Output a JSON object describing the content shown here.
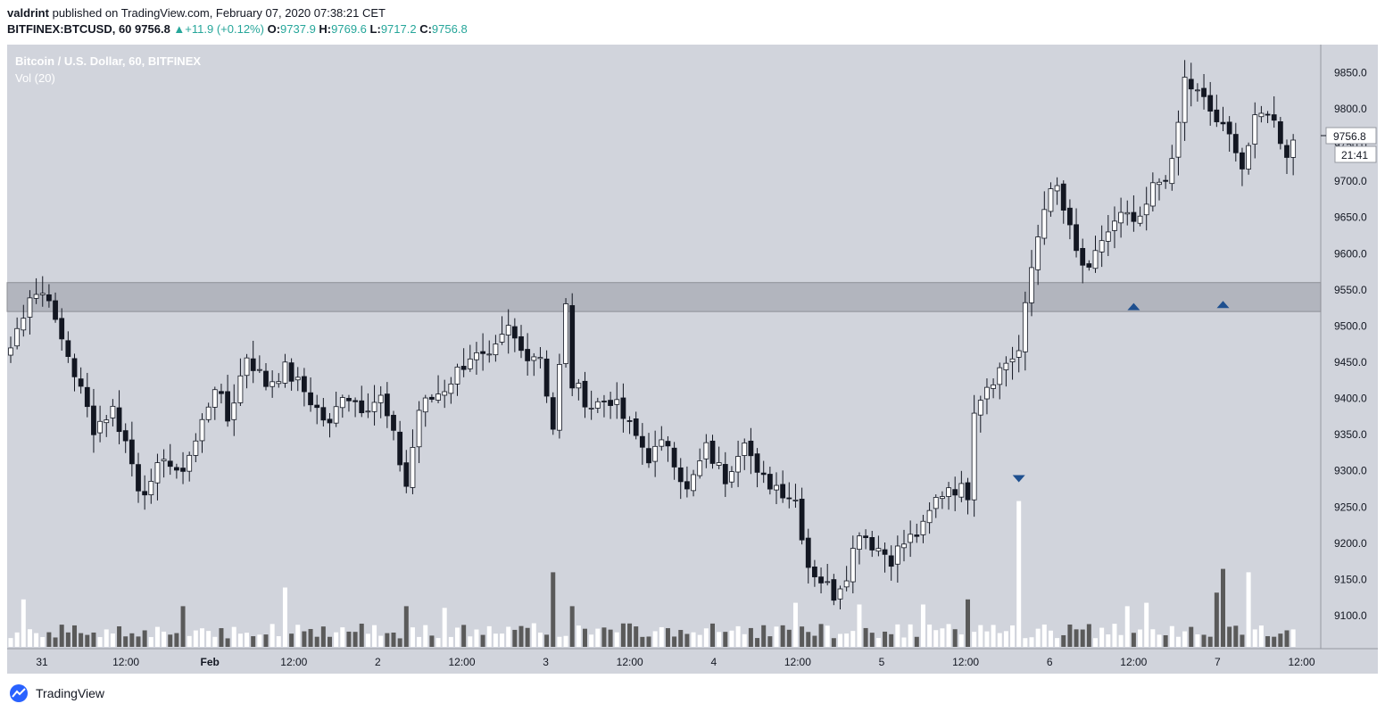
{
  "header": {
    "line1_user": "valdrint",
    "line1_rest": "published on TradingView.com, February 07, 2020 07:38:21 CET",
    "symbol": "BITFINEX:BTCUSD, 60",
    "last": "9756.8",
    "change": "+11.9 (+0.12%)",
    "o_label": "O:",
    "o": "9737.9",
    "h_label": "H:",
    "h": "9769.6",
    "l_label": "L:",
    "l": "9717.2",
    "c_label": "C:",
    "c": "9756.8"
  },
  "chart_data": {
    "type": "candlestick",
    "title": "Bitcoin / U.S. Dollar, 60, BITFINEX",
    "subtitle": "Vol (20)",
    "y_ticks": [
      9100,
      9150,
      9200,
      9250,
      9300,
      9350,
      9400,
      9450,
      9500,
      9550,
      9600,
      9650,
      9700,
      9750,
      9800,
      9850
    ],
    "y_tick_labels": [
      "9100.0",
      "9150.0",
      "9200.0",
      "9250.0",
      "9300.0",
      "9350.0",
      "9400.0",
      "9450.0",
      "9500.0",
      "9550.0",
      "9600.0",
      "9650.0",
      "9700.0",
      "9750.0",
      "9800.0",
      "9850.0"
    ],
    "x_tick_labels": [
      "31",
      "12:00",
      "Feb",
      "12:00",
      "2",
      "12:00",
      "3",
      "12:00",
      "4",
      "12:00",
      "5",
      "12:00",
      "6",
      "12:00",
      "7",
      "12:00"
    ],
    "x_tick_bold": [
      false,
      false,
      true,
      false,
      false,
      false,
      false,
      false,
      false,
      false,
      false,
      false,
      false,
      false,
      false,
      false
    ],
    "current_price_label": "9756.8",
    "countdown_label": "21:41",
    "support_zone": [
      9520,
      9560
    ],
    "markers": [
      {
        "type": "down",
        "bar": 158,
        "price": 9288
      },
      {
        "type": "up",
        "bar": 176,
        "price": 9528
      },
      {
        "type": "up",
        "bar": 190,
        "price": 9531
      }
    ],
    "colors": {
      "up_body": "#ffffff",
      "down_body": "#131722",
      "wick": "#131722",
      "vol_up": "#ffffff",
      "vol_down": "#5a5a5a",
      "zone": "#b2b5be",
      "marker": "#1e4f8f",
      "bg": "#d1d4dc"
    },
    "waypoints": [
      [
        0,
        9470
      ],
      [
        3,
        9545
      ],
      [
        6,
        9545
      ],
      [
        7,
        9500
      ],
      [
        9,
        9460
      ],
      [
        13,
        9360
      ],
      [
        16,
        9385
      ],
      [
        18,
        9340
      ],
      [
        20,
        9280
      ],
      [
        22,
        9275
      ],
      [
        24,
        9325
      ],
      [
        26,
        9290
      ],
      [
        29,
        9340
      ],
      [
        32,
        9420
      ],
      [
        34,
        9370
      ],
      [
        37,
        9460
      ],
      [
        40,
        9420
      ],
      [
        43,
        9440
      ],
      [
        46,
        9410
      ],
      [
        50,
        9360
      ],
      [
        52,
        9410
      ],
      [
        55,
        9390
      ],
      [
        58,
        9400
      ],
      [
        60,
        9345
      ],
      [
        62,
        9280
      ],
      [
        64,
        9385
      ],
      [
        68,
        9415
      ],
      [
        72,
        9460
      ],
      [
        75,
        9450
      ],
      [
        78,
        9495
      ],
      [
        80,
        9465
      ],
      [
        83,
        9460
      ],
      [
        85,
        9360
      ],
      [
        87,
        9525
      ],
      [
        88,
        9420
      ],
      [
        91,
        9390
      ],
      [
        94,
        9400
      ],
      [
        97,
        9360
      ],
      [
        100,
        9320
      ],
      [
        103,
        9340
      ],
      [
        106,
        9270
      ],
      [
        109,
        9330
      ],
      [
        112,
        9290
      ],
      [
        115,
        9350
      ],
      [
        117,
        9290
      ],
      [
        120,
        9280
      ],
      [
        123,
        9260
      ],
      [
        125,
        9170
      ],
      [
        127,
        9150
      ],
      [
        129,
        9130
      ],
      [
        131,
        9160
      ],
      [
        133,
        9220
      ],
      [
        135,
        9200
      ],
      [
        138,
        9180
      ],
      [
        140,
        9200
      ],
      [
        143,
        9220
      ],
      [
        145,
        9260
      ],
      [
        147,
        9280
      ],
      [
        150,
        9270
      ],
      [
        151,
        9390
      ],
      [
        153,
        9420
      ],
      [
        156,
        9450
      ],
      [
        158,
        9465
      ],
      [
        160,
        9580
      ],
      [
        162,
        9670
      ],
      [
        164,
        9690
      ],
      [
        167,
        9600
      ],
      [
        169,
        9570
      ],
      [
        171,
        9620
      ],
      [
        174,
        9650
      ],
      [
        177,
        9640
      ],
      [
        179,
        9690
      ],
      [
        182,
        9720
      ],
      [
        184,
        9840
      ],
      [
        187,
        9810
      ],
      [
        190,
        9770
      ],
      [
        192,
        9750
      ],
      [
        193,
        9720
      ],
      [
        195,
        9780
      ],
      [
        197,
        9800
      ],
      [
        200,
        9740
      ],
      [
        201,
        9756.8
      ]
    ],
    "volume_spikes": [
      [
        2,
        1.4
      ],
      [
        27,
        1.2
      ],
      [
        43,
        1.75
      ],
      [
        62,
        1.2
      ],
      [
        68,
        1.15
      ],
      [
        85,
        2.2
      ],
      [
        88,
        1.2
      ],
      [
        123,
        1.3
      ],
      [
        133,
        1.25
      ],
      [
        143,
        1.25
      ],
      [
        150,
        1.4
      ],
      [
        158,
        4.3
      ],
      [
        175,
        1.2
      ],
      [
        178,
        1.3
      ],
      [
        189,
        1.6
      ],
      [
        190,
        2.3
      ],
      [
        194,
        2.2
      ]
    ]
  },
  "footer": {
    "brand": "TradingView"
  }
}
